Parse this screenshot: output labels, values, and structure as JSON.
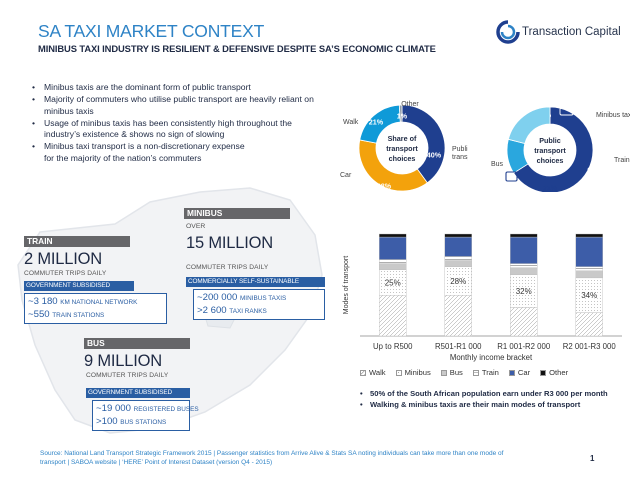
{
  "header": {
    "title": "SA TAXI MARKET CONTEXT",
    "subtitle": "MINIBUS TAXI INDUSTRY IS RESILIENT & DEFENSIVE DESPITE SA’S ECONOMIC CLIMATE"
  },
  "logo": {
    "text": "Transaction Capital"
  },
  "bullets": [
    "Minibus taxis are the dominant form of public transport",
    "Majority of commuters who utilise public transport are heavily reliant on minibus taxis",
    "Usage of minibus taxis has been consistently high throughout the industry’s existence & shows no sign of slowing",
    "Minibus taxi transport is a non-discretionary expense for the majority of the nation’s commuters"
  ],
  "train": {
    "header": "TRAIN",
    "value": "2 MILLION",
    "sub": "COMMUTER TRIPS DAILY",
    "tag": "GOVERNMENT SUBSIDISED",
    "line1_num": "~3 180",
    "line1_unit": "KM NATIONAL NETWORK",
    "line2_num": "~550",
    "line2_unit": "TRAIN STATIONS"
  },
  "minibus": {
    "header": "MINIBUS",
    "over": "OVER",
    "value": "15 MILLION",
    "sub": "COMMUTER TRIPS DAILY",
    "tag": "COMMERCIALLY SELF-SUSTAINABLE",
    "line1_num": "~200 000",
    "line1_unit": "MINIBUS TAXIS",
    "line2_num": ">2 600",
    "line2_unit": "TAXI RANKS"
  },
  "bus": {
    "header": "BUS",
    "value": "9 MILLION",
    "sub": "COMMUTER TRIPS DAILY",
    "tag": "GOVERNMENT SUBSIDISED",
    "line1_num": "~19 000",
    "line1_unit": "REGISTERED BUSES",
    "line2_num": ">100",
    "line2_unit": "BUS STATIONS"
  },
  "chart_data": [
    {
      "type": "pie",
      "title": "Share of transport choices",
      "labels": [
        "Public transport",
        "Car",
        "Walk",
        "Other"
      ],
      "values": [
        40,
        38,
        21,
        1
      ],
      "value_labels": [
        "40%",
        "38%",
        "21%",
        "1%"
      ],
      "colors": [
        "#1f3f8f",
        "#f3a20c",
        "#0f9ad8",
        "#8e9ba8"
      ]
    },
    {
      "type": "pie",
      "title": "Public transport choices",
      "labels": [
        "Minibus taxi",
        "Train",
        "Bus"
      ],
      "values": [
        66,
        13,
        21
      ],
      "value_labels": [
        "66%",
        "13%",
        "21%"
      ],
      "colors": [
        "#1f3f8f",
        "#2aa7de",
        "#7fd0ee"
      ]
    },
    {
      "type": "bar",
      "stacked": true,
      "categories": [
        "Up to R500",
        "R501-R1 000",
        "R1 001-R2 000",
        "R2 001-R3 000"
      ],
      "xlabel": "Monthly income bracket",
      "ylabel": "Modes of transport",
      "series": [
        {
          "name": "Walk",
          "values": [
            40,
            40,
            28,
            23
          ],
          "color": "#ffffff",
          "pattern": "hatch"
        },
        {
          "name": "Minibus",
          "values": [
            25,
            28,
            32,
            34
          ],
          "color": "#ffffff",
          "pattern": "dots"
        },
        {
          "name": "Bus",
          "values": [
            6,
            6,
            7,
            7
          ],
          "color": "#c9c9c9"
        },
        {
          "name": "Train",
          "values": [
            4,
            4,
            4,
            4
          ],
          "color": "#ffffff",
          "pattern": "lines"
        },
        {
          "name": "Car",
          "values": [
            22,
            19,
            26,
            29
          ],
          "color": "#3d5da8"
        },
        {
          "name": "Other",
          "values": [
            3,
            3,
            3,
            3
          ],
          "color": "#111111"
        }
      ],
      "data_labels": [
        "25%",
        "28%",
        "32%",
        "34%"
      ],
      "ylim": [
        0,
        100
      ]
    }
  ],
  "notes": [
    "50% of the South African population earn under R3 000 per month",
    "Walking & minibus taxis are their main modes of transport"
  ],
  "source": "Source: National Land Transport Strategic Framework 2015 | Passenger statistics from Arrive Alive & Stats SA noting individuals can take more than one mode of transport | SABOA website | ‘HERE’ Point of Interest Dataset (version Q4 - 2015)",
  "page_number": "1"
}
